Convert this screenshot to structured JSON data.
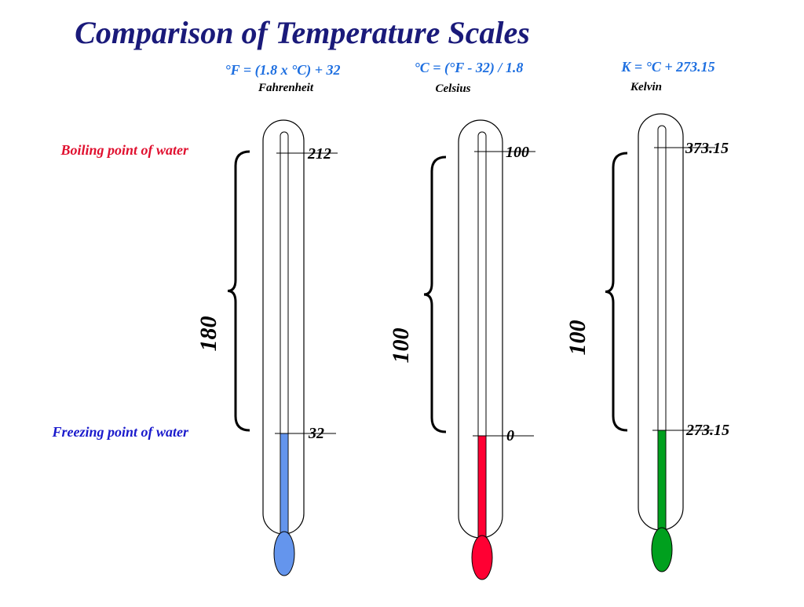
{
  "title": "Comparison of Temperature Scales",
  "boiling_label": "Boiling point of water",
  "freezing_label": "Freezing point of water",
  "thermometers": [
    {
      "formula": "°F = (1.8 x °C) + 32",
      "name": "Fahrenheit",
      "boiling": "212",
      "freezing": "32",
      "range": "180",
      "color": "#6495ed"
    },
    {
      "formula": "°C = (°F  -  32) / 1.8",
      "name": "Celsius",
      "boiling": "100",
      "freezing": "0",
      "range": "100",
      "color": "#ff0033"
    },
    {
      "formula": "K = °C  + 273.15",
      "name": "Kelvin",
      "boiling": "373.15",
      "freezing": "273.15",
      "range": "100",
      "color": "#00a01e"
    }
  ]
}
